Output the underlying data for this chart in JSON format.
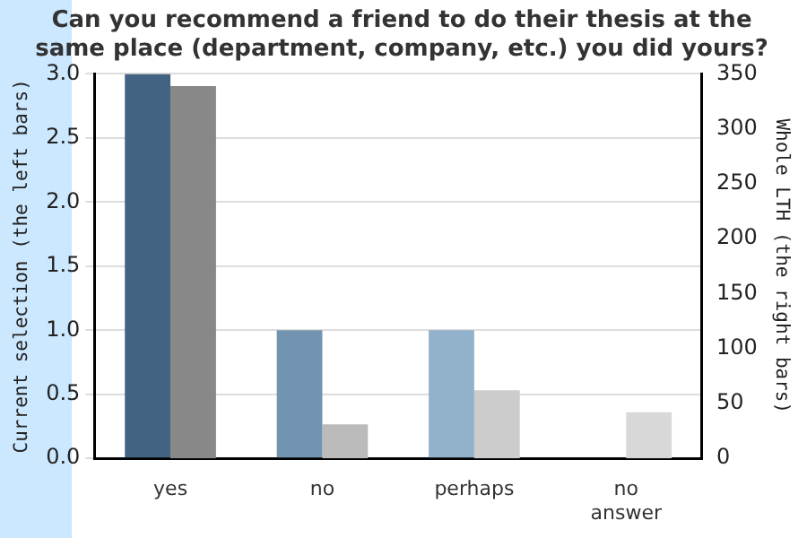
{
  "chart_data": {
    "type": "bar",
    "title": "Can you recommend a friend to do their thesis at the same place (department, company, etc.) you did yours?",
    "ylabel": "Current selection (the left bars)",
    "y2label": "Whole LTH (the right bars)",
    "categories": [
      "yes",
      "no",
      "perhaps",
      "no\nanswer"
    ],
    "series": [
      {
        "colors": [
          "#426482",
          "#7394b0",
          "#92b2cc",
          "#b0c8dc"
        ],
        "values": [
          3,
          1,
          1,
          0
        ]
      },
      {
        "colors": [
          "#888888",
          "#bbbbbb",
          "#cccccc",
          "#d8d8d8"
        ],
        "values": [
          339,
          31,
          62,
          42
        ],
        "axis": "y2"
      }
    ],
    "ylim": [
      0,
      3
    ],
    "yticks": [
      {
        "value": 0,
        "label": "0.0"
      },
      {
        "value": 0.5,
        "label": "0.5"
      },
      {
        "value": 1,
        "label": "1.0"
      },
      {
        "value": 1.5,
        "label": "1.5"
      },
      {
        "value": 2,
        "label": "2.0"
      },
      {
        "value": 2.5,
        "label": "2.5"
      },
      {
        "value": 3,
        "label": "3.0"
      }
    ],
    "y2lim": [
      0,
      350
    ],
    "y2ticks": [
      0,
      50,
      100,
      150,
      200,
      250,
      300,
      350
    ],
    "grid": "y",
    "legend": false
  }
}
